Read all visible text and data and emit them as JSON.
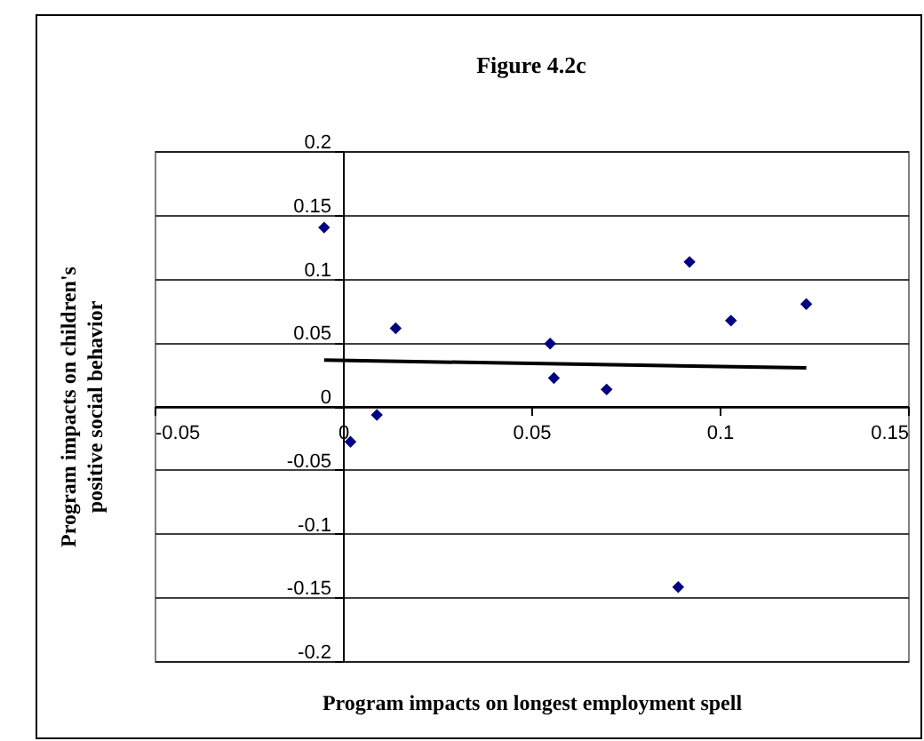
{
  "chart_data": {
    "type": "scatter",
    "title": "Figure 4.2c",
    "xlabel": "Program impacts on longest employment spell",
    "ylabel": "Program impacts on children's positive social behavior",
    "series": [
      {
        "type": "scatter",
        "color": "#000080",
        "marker": "diamond",
        "x": [
          -0.005,
          0.002,
          0.009,
          0.014,
          0.055,
          0.056,
          0.07,
          0.089,
          0.092,
          0.103,
          0.123
        ],
        "values": [
          0.14,
          -0.028,
          -0.007,
          0.061,
          0.049,
          0.022,
          0.013,
          -0.142,
          0.113,
          0.067,
          0.08
        ]
      },
      {
        "type": "line",
        "color": "#000000",
        "x": [
          -0.005,
          0.123
        ],
        "values": [
          0.036,
          0.03
        ]
      }
    ],
    "xlim": [
      -0.05,
      0.15
    ],
    "xticks": [
      -0.05,
      0,
      0.05,
      0.1,
      0.15
    ],
    "ylim": [
      -0.2,
      0.2
    ],
    "yticks": [
      0.2,
      0.15,
      0.1,
      0.05,
      0,
      -0.05,
      -0.1,
      -0.15,
      -0.2
    ],
    "grid": "y"
  }
}
